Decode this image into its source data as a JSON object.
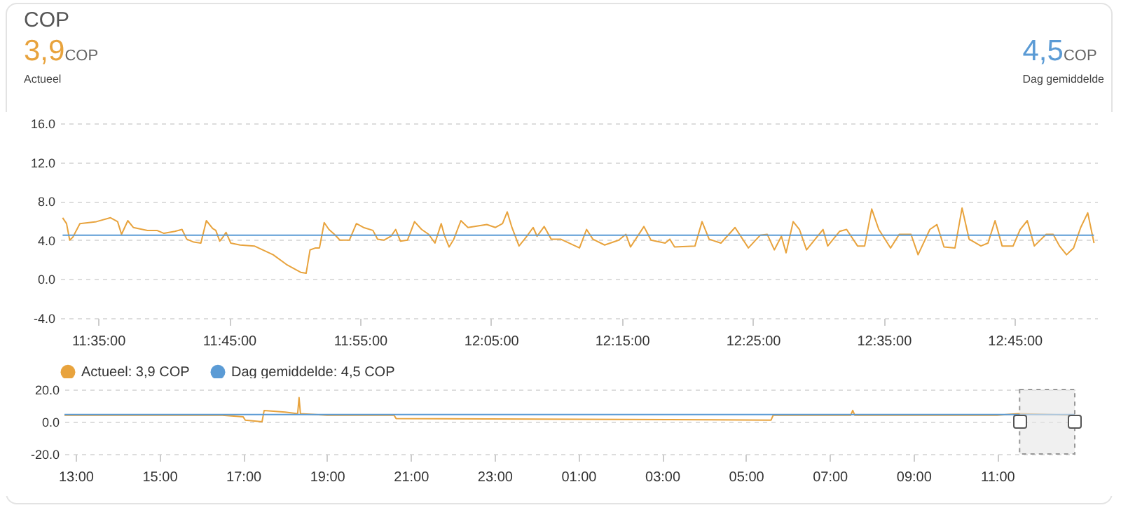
{
  "chart_data": [
    {
      "type": "line",
      "title": "COP",
      "annotations": [
        "3,9",
        "COP",
        "Actueel",
        "4,5",
        "COP",
        "Dag gemiddelde"
      ],
      "xlim": [
        11.535,
        12.855
      ],
      "xticks": [
        {
          "value": 11.5833,
          "label": "11:35:00"
        },
        {
          "value": 11.75,
          "label": "11:45:00"
        },
        {
          "value": 11.9167,
          "label": "11:55:00"
        },
        {
          "value": 12.0833,
          "label": "12:05:00"
        },
        {
          "value": 12.25,
          "label": "12:15:00"
        },
        {
          "value": 12.4167,
          "label": "12:25:00"
        },
        {
          "value": 12.5833,
          "label": "12:35:00"
        },
        {
          "value": 12.75,
          "label": "12:45:00"
        }
      ],
      "ylim": [
        -4,
        16
      ],
      "yticks": [
        {
          "value": -4,
          "label": "-4.0"
        },
        {
          "value": 0,
          "label": "0.0"
        },
        {
          "value": 4,
          "label": "4.0"
        },
        {
          "value": 8,
          "label": "8.0"
        },
        {
          "value": 12,
          "label": "12.0"
        },
        {
          "value": 16,
          "label": "16.0"
        }
      ],
      "grid": "y",
      "legend": "bottom",
      "series": [
        {
          "name": "Actueel: 3,9 COP",
          "color": "#e8a33d",
          "x": [
            11.538,
            11.543,
            11.547,
            11.551,
            11.56,
            11.581,
            11.599,
            11.608,
            11.613,
            11.621,
            11.628,
            11.646,
            11.658,
            11.667,
            11.681,
            11.69,
            11.696,
            11.705,
            11.714,
            11.721,
            11.729,
            11.733,
            11.738,
            11.742,
            11.746,
            11.752,
            11.764,
            11.782,
            11.806,
            11.823,
            11.841,
            11.848,
            11.853,
            11.86,
            11.865,
            11.871,
            11.877,
            11.884,
            11.891,
            11.903,
            11.912,
            11.921,
            11.933,
            11.939,
            11.947,
            11.956,
            11.962,
            11.968,
            11.977,
            11.986,
            11.995,
            12.004,
            12.012,
            12.02,
            12.024,
            12.03,
            12.036,
            12.045,
            12.054,
            12.078,
            12.089,
            12.098,
            12.104,
            12.11,
            12.119,
            12.128,
            12.137,
            12.142,
            12.151,
            12.16,
            12.172,
            12.196,
            12.205,
            12.213,
            12.228,
            12.246,
            12.255,
            12.261,
            12.278,
            12.287,
            12.305,
            12.311,
            12.317,
            12.343,
            12.352,
            12.361,
            12.376,
            12.394,
            12.411,
            12.426,
            12.435,
            12.444,
            12.453,
            12.459,
            12.468,
            12.476,
            12.485,
            12.506,
            12.512,
            12.527,
            12.536,
            12.55,
            12.559,
            12.568,
            12.577,
            12.592,
            12.603,
            12.618,
            12.627,
            12.642,
            12.651,
            12.66,
            12.674,
            12.683,
            12.692,
            12.707,
            12.716,
            12.725,
            12.734,
            12.748,
            12.757,
            12.766,
            12.775,
            12.79,
            12.799,
            12.807,
            12.816,
            12.825,
            12.834,
            12.843,
            12.851
          ],
          "values": [
            6.3,
            5.7,
            4.0,
            4.3,
            5.7,
            5.9,
            6.3,
            5.9,
            4.6,
            6.0,
            5.3,
            5.0,
            5.0,
            4.7,
            4.9,
            5.1,
            4.1,
            3.8,
            3.7,
            6.0,
            5.2,
            5.0,
            3.9,
            4.3,
            4.8,
            3.7,
            3.5,
            3.4,
            2.5,
            1.5,
            0.7,
            0.6,
            3.0,
            3.2,
            3.2,
            5.8,
            5.1,
            4.6,
            4.0,
            4.0,
            5.7,
            5.3,
            5.0,
            4.1,
            4.0,
            4.4,
            5.1,
            3.9,
            4.0,
            5.9,
            5.1,
            4.6,
            3.7,
            5.7,
            4.5,
            3.3,
            4.1,
            6.0,
            5.3,
            5.6,
            5.3,
            5.7,
            6.9,
            5.3,
            3.4,
            4.3,
            5.3,
            4.4,
            5.4,
            4.1,
            4.1,
            3.2,
            5.1,
            4.1,
            3.5,
            4.0,
            4.6,
            3.3,
            5.4,
            4.0,
            3.7,
            4.1,
            3.3,
            3.4,
            5.9,
            4.1,
            3.7,
            5.3,
            3.2,
            4.5,
            4.6,
            3.0,
            4.4,
            2.7,
            5.9,
            5.1,
            3.0,
            5.1,
            3.4,
            4.9,
            5.1,
            3.4,
            3.4,
            7.2,
            5.1,
            3.2,
            4.6,
            4.6,
            2.5,
            5.1,
            5.6,
            3.3,
            3.2,
            7.3,
            4.1,
            3.4,
            3.7,
            6.0,
            3.4,
            3.4,
            5.1,
            6.0,
            3.4,
            4.6,
            4.6,
            3.4,
            2.5,
            3.2,
            5.3,
            6.8,
            3.7
          ]
        },
        {
          "name": "Dag gemiddelde: 4,5 COP",
          "color": "#5b9bd5",
          "x": [
            11.538,
            12.851
          ],
          "values": [
            4.5,
            4.5
          ]
        }
      ]
    },
    {
      "type": "line",
      "xlim": [
        "--01-01T12:44",
        "--01-02T12:51"
      ],
      "xticks": [
        {
          "value": "--01-01T13:00",
          "label": "13:00"
        },
        {
          "value": "--01-01T15:00",
          "label": "15:00"
        },
        {
          "value": "--01-01T17:00",
          "label": "17:00"
        },
        {
          "value": "--01-01T19:00",
          "label": "19:00"
        },
        {
          "value": "--01-01T21:00",
          "label": "21:00"
        },
        {
          "value": "--01-01T23:00",
          "label": "23:00"
        },
        {
          "value": "--01-02T01:00",
          "label": "01:00"
        },
        {
          "value": "--01-02T03:00",
          "label": "03:00"
        },
        {
          "value": "--01-02T05:00",
          "label": "05:00"
        },
        {
          "value": "--01-02T07:00",
          "label": "07:00"
        },
        {
          "value": "--01-02T09:00",
          "label": "09:00"
        },
        {
          "value": "--01-02T11:00",
          "label": "11:00"
        }
      ],
      "ylim": [
        -20,
        20
      ],
      "yticks": [
        {
          "value": -20,
          "label": "-20.0"
        },
        {
          "value": 0,
          "label": "0.0"
        },
        {
          "value": 20,
          "label": "20.0"
        }
      ],
      "grid": "y",
      "bands": [
        {
          "axis": "x",
          "from": "--01-02T11:32",
          "to": "--01-02T12:51",
          "color": "#e6e6e6"
        }
      ],
      "series": [
        {
          "color": "#e8a33d",
          "x": [
            "--01-01T12:44",
            "--01-01T13:30",
            "--01-01T14:30",
            "--01-01T15:30",
            "--01-01T16:30",
            "--01-01T17:00",
            "--01-01T17:03",
            "--01-01T17:27",
            "--01-01T17:30",
            "--01-01T18:00",
            "--01-01T18:18",
            "--01-01T18:20",
            "--01-01T18:22",
            "--01-01T19:00",
            "--01-01T20:36",
            "--01-01T20:39",
            "--01-02T05:36",
            "--01-02T05:39",
            "--01-02T07:30",
            "--01-02T07:33",
            "--01-02T07:36",
            "--01-02T09:00",
            "--01-02T11:00",
            "--01-02T11:30",
            "--01-02T12:51"
          ],
          "values": [
            4,
            4,
            4,
            4,
            4,
            3,
            1,
            0,
            7,
            6,
            5,
            15,
            5,
            4,
            4,
            2,
            1,
            4,
            4,
            7,
            4,
            4,
            4,
            5,
            4
          ]
        },
        {
          "color": "#5b9bd5",
          "x": [
            "--01-01T12:44",
            "--01-02T12:51"
          ],
          "values": [
            4.5,
            4.5
          ]
        }
      ]
    }
  ]
}
